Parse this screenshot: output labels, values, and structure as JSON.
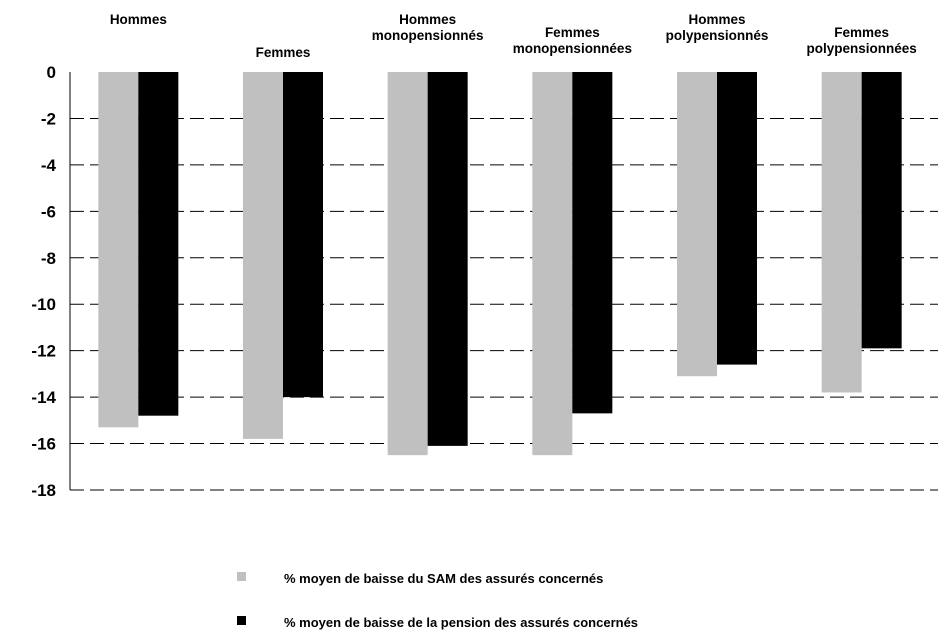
{
  "chart_data": {
    "type": "bar",
    "categories": [
      [
        "Hommes"
      ],
      [
        "Femmes"
      ],
      [
        "Hommes",
        "monopensionnés"
      ],
      [
        "Femmes",
        "monopensionnées"
      ],
      [
        "Hommes",
        "polypensionnés"
      ],
      [
        "Femmes",
        "polypensionnées"
      ]
    ],
    "series": [
      {
        "name": "% moyen de baisse du SAM des assurés concernés",
        "color": "#c0c0c0",
        "values": [
          -15.3,
          -15.8,
          -16.5,
          -16.5,
          -13.1,
          -13.8
        ]
      },
      {
        "name": "% moyen de baisse de la pension des assurés concernés",
        "color": "#000000",
        "values": [
          -14.8,
          -14.0,
          -16.1,
          -14.7,
          -12.6,
          -11.9
        ]
      }
    ],
    "yticks": [
      "0",
      "-2",
      "-4",
      "-6",
      "-8",
      "-10",
      "-12",
      "-14",
      "-16",
      "-18"
    ],
    "ylim": [
      -18,
      0
    ],
    "grid": "dashed-horizontal",
    "category_labels_position": "top",
    "legend_position": "bottom"
  }
}
